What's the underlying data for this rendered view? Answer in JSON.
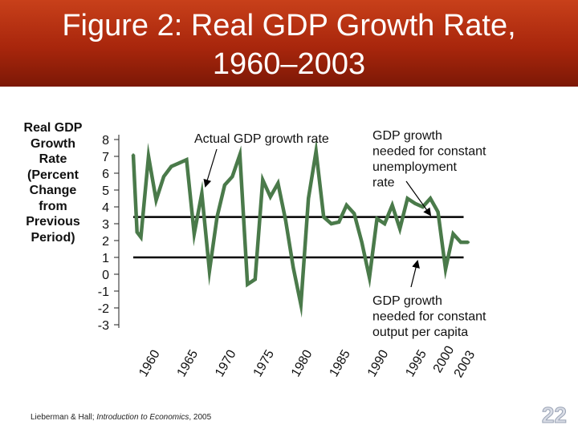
{
  "slide": {
    "title_line1": "Figure 2:  Real GDP Growth Rate,",
    "title_line2": "1960–2003",
    "footer_authors": "Lieberman & Hall; ",
    "footer_book": "Introduction to Economics",
    "footer_year": ", 2005",
    "slide_number": "22"
  },
  "chart_data": {
    "type": "line",
    "title": "Figure 2:  Real GDP Growth Rate, 1960–2003",
    "ylabel": "Real GDP\nGrowth\nRate\n(Percent\nChange\nfrom\nPrevious\nPeriod)",
    "xlabel": "",
    "ylim": [
      -3,
      8
    ],
    "y_ticks": [
      8,
      7,
      6,
      5,
      4,
      3,
      2,
      1,
      0,
      -1,
      -2,
      -3
    ],
    "x_ticks": [
      "1960",
      "1965",
      "1970",
      "1975",
      "1980",
      "1985",
      "1990",
      "1995",
      "2000",
      "2003"
    ],
    "x_tick_values": [
      1960,
      1965,
      1970,
      1975,
      1980,
      1985,
      1990,
      1995,
      2000,
      2003
    ],
    "xlim": [
      1959,
      2004
    ],
    "series": [
      {
        "name": "Actual GDP growth rate",
        "color": "#4a7a4a",
        "x": [
          1959,
          1959.5,
          1960,
          1961,
          1962,
          1963,
          1964,
          1965,
          1966,
          1967,
          1968,
          1969,
          1970,
          1971,
          1972,
          1973,
          1974,
          1975,
          1976,
          1977,
          1978,
          1979,
          1980,
          1981,
          1982,
          1983,
          1984,
          1985,
          1986,
          1987,
          1988,
          1989,
          1990,
          1991,
          1992,
          1993,
          1994,
          1995,
          1996,
          1997,
          1998,
          1999,
          2000,
          2001,
          2002,
          2003
        ],
        "y": [
          7.1,
          2.5,
          2.2,
          7.0,
          4.4,
          5.8,
          6.4,
          6.6,
          6.8,
          2.4,
          4.8,
          0.2,
          3.4,
          5.3,
          5.8,
          7.1,
          -0.6,
          -0.3,
          5.6,
          4.6,
          5.4,
          3.2,
          0.4,
          -1.8,
          4.5,
          7.3,
          3.4,
          3.0,
          3.1,
          4.1,
          3.6,
          1.9,
          -0.2,
          3.3,
          3.0,
          4.1,
          2.7,
          4.5,
          4.2,
          4.0,
          4.5,
          3.7,
          0.3,
          2.4,
          1.9,
          1.9
        ]
      },
      {
        "name": "GDP growth needed for constant unemployment rate",
        "color": "#000000",
        "x": [
          1959,
          2003
        ],
        "y": [
          3.4,
          3.4
        ]
      },
      {
        "name": "GDP growth needed for constant output per capita",
        "color": "#000000",
        "x": [
          1959,
          2003
        ],
        "y": [
          1.0,
          1.0
        ]
      }
    ],
    "annotations": [
      {
        "text_lines": [
          "Actual GDP growth rate"
        ]
      },
      {
        "text_lines": [
          "GDP growth",
          "needed for constant",
          "unemployment",
          "rate"
        ]
      },
      {
        "text_lines": [
          "GDP growth",
          "needed for constant",
          "output per capita"
        ]
      }
    ]
  }
}
